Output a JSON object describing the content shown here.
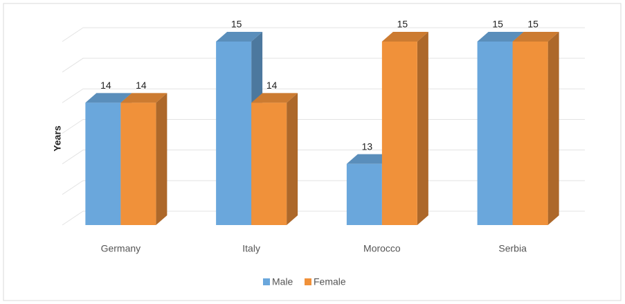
{
  "chart_data": {
    "type": "bar3d",
    "y_label": "Years",
    "categories": [
      "Germany",
      "Italy",
      "Morocco",
      "Serbia"
    ],
    "series": [
      {
        "name": "Male",
        "color": "#6aa7dc",
        "values": [
          14,
          15,
          13,
          15
        ]
      },
      {
        "name": "Female",
        "color": "#f0913a",
        "values": [
          14,
          14,
          15,
          15
        ]
      }
    ],
    "ylim": [
      12,
      15
    ],
    "yticks": [
      12,
      12.5,
      13,
      13.5,
      14,
      14.5,
      15
    ],
    "grid": true,
    "legend": "bottom"
  }
}
